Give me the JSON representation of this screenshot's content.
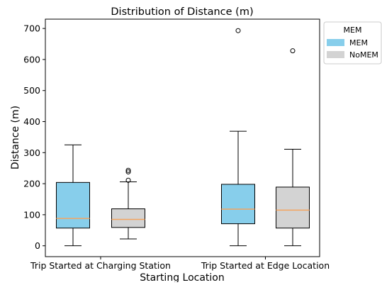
{
  "chart_data": {
    "type": "boxplot",
    "title": "Distribution of Distance (m)",
    "xlabel": "Starting Location",
    "ylabel": "Distance (m)",
    "categories": [
      "Trip Started at Charging Station",
      "Trip Started at Edge Location"
    ],
    "ylim": [
      -35,
      730
    ],
    "yticks": [
      0,
      100,
      200,
      300,
      400,
      500,
      600,
      700
    ],
    "grid": false,
    "legend": {
      "title": "MEM",
      "placement": "outside-top-right"
    },
    "series": [
      {
        "name": "MEM",
        "color": "#87ceeb",
        "boxes": [
          {
            "whisker_low": 0,
            "q1": 57,
            "median": 88,
            "q3": 204,
            "whisker_high": 325,
            "outliers": []
          },
          {
            "whisker_low": 0,
            "q1": 71,
            "median": 118,
            "q3": 198,
            "whisker_high": 369,
            "outliers": [
              693
            ]
          }
        ]
      },
      {
        "name": "NoMEM",
        "color": "#d3d3d3",
        "boxes": [
          {
            "whisker_low": 22,
            "q1": 59,
            "median": 85,
            "q3": 119,
            "whisker_high": 206,
            "outliers": [
              211,
              238,
              243
            ]
          },
          {
            "whisker_low": 0,
            "q1": 57,
            "median": 115,
            "q3": 189,
            "whisker_high": 311,
            "outliers": [
              628
            ]
          }
        ]
      }
    ],
    "median_color": "#f4a460"
  }
}
